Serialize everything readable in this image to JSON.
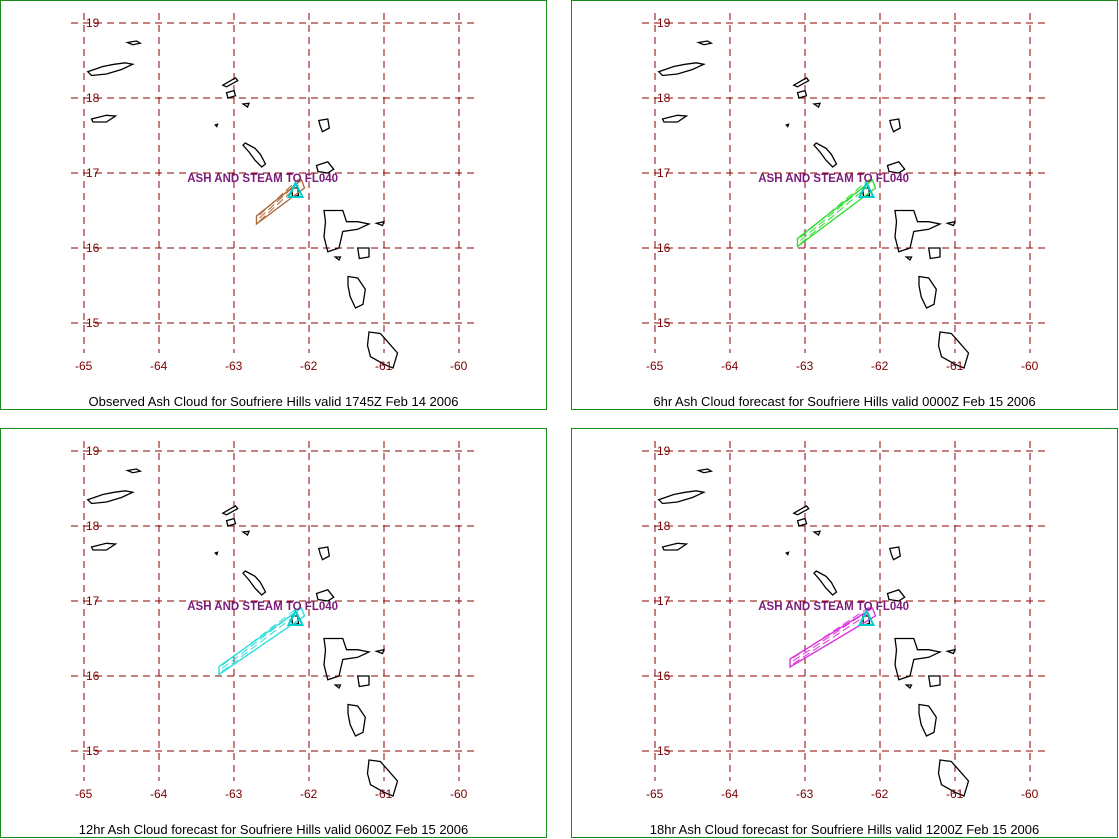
{
  "colors": {
    "panel_border": "#1a8a1a",
    "grid": "#8b0000",
    "tick_text": "#7a0000",
    "coastline": "#000000",
    "volcano_marker": "#00cccc",
    "annotation_text": "#7a1a7a"
  },
  "map": {
    "x_ticks": [
      "-65",
      "-64",
      "-63",
      "-62",
      "-61",
      "-60"
    ],
    "y_ticks": [
      "19",
      "18",
      "17",
      "16",
      "15"
    ],
    "annotation": "ASH AND STEAM TO FL040"
  },
  "panels": [
    {
      "caption": "Observed Ash Cloud for Soufriere  Hills valid 1745Z Feb 14 2006",
      "cloud_color": "#b06a3a",
      "cloud_extent_lon": [
        -62.7,
        -62.1
      ],
      "cloud_extent_lat": [
        16.4,
        16.8
      ]
    },
    {
      "caption": "6hr Ash Cloud forecast for Soufriere  Hills valid 0000Z Feb 15 2006",
      "cloud_color": "#33dd33",
      "cloud_extent_lon": [
        -63.1,
        -62.1
      ],
      "cloud_extent_lat": [
        16.1,
        16.8
      ]
    },
    {
      "caption": "12hr Ash Cloud forecast for Soufriere  Hills valid 0600Z Feb 15 2006",
      "cloud_color": "#33dddd",
      "cloud_extent_lon": [
        -63.2,
        -62.1
      ],
      "cloud_extent_lat": [
        16.1,
        16.8
      ]
    },
    {
      "caption": "18hr Ash Cloud forecast for Soufriere  Hills valid 1200Z Feb 15 2006",
      "cloud_color": "#dd33dd",
      "cloud_extent_lon": [
        -63.2,
        -62.1
      ],
      "cloud_extent_lat": [
        16.2,
        16.8
      ]
    }
  ]
}
